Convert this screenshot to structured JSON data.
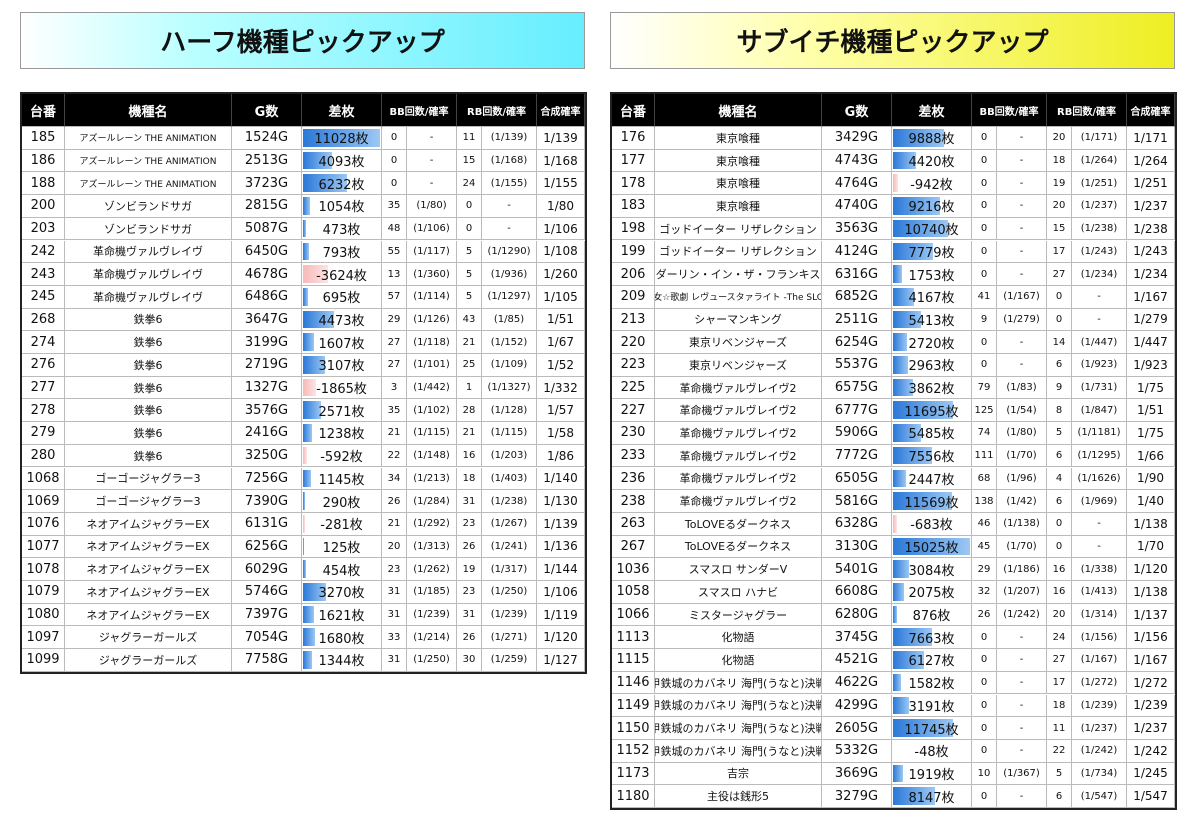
{
  "tables": [
    {
      "title": "ハーフ機種ピックアップ",
      "header": [
        "台番",
        "機種名",
        "G数",
        "差枚",
        "BB回数/確率",
        "RB回数/確率",
        "合成確率"
      ],
      "rows": [
        [
          "185",
          "アズールレーン THE ANIMATION",
          "1524G",
          "11028枚",
          "0",
          "-",
          "11",
          "(1/139)",
          "1/139"
        ],
        [
          "186",
          "アズールレーン THE ANIMATION",
          "2513G",
          "4093枚",
          "0",
          "-",
          "15",
          "(1/168)",
          "1/168"
        ],
        [
          "188",
          "アズールレーン THE ANIMATION",
          "3723G",
          "6232枚",
          "0",
          "-",
          "24",
          "(1/155)",
          "1/155"
        ],
        [
          "200",
          "ゾンビランドサガ",
          "2815G",
          "1054枚",
          "35",
          "(1/80)",
          "0",
          "-",
          "1/80"
        ],
        [
          "203",
          "ゾンビランドサガ",
          "5087G",
          "473枚",
          "48",
          "(1/106)",
          "0",
          "-",
          "1/106"
        ],
        [
          "242",
          "革命機ヴァルヴレイヴ",
          "6450G",
          "793枚",
          "55",
          "(1/117)",
          "5",
          "(1/1290)",
          "1/108"
        ],
        [
          "243",
          "革命機ヴァルヴレイヴ",
          "4678G",
          "-3624枚",
          "13",
          "(1/360)",
          "5",
          "(1/936)",
          "1/260"
        ],
        [
          "245",
          "革命機ヴァルヴレイヴ",
          "6486G",
          "695枚",
          "57",
          "(1/114)",
          "5",
          "(1/1297)",
          "1/105"
        ],
        [
          "268",
          "鉄拳6",
          "3647G",
          "4473枚",
          "29",
          "(1/126)",
          "43",
          "(1/85)",
          "1/51"
        ],
        [
          "274",
          "鉄拳6",
          "3199G",
          "1607枚",
          "27",
          "(1/118)",
          "21",
          "(1/152)",
          "1/67"
        ],
        [
          "276",
          "鉄拳6",
          "2719G",
          "3107枚",
          "27",
          "(1/101)",
          "25",
          "(1/109)",
          "1/52"
        ],
        [
          "277",
          "鉄拳6",
          "1327G",
          "-1865枚",
          "3",
          "(1/442)",
          "1",
          "(1/1327)",
          "1/332"
        ],
        [
          "278",
          "鉄拳6",
          "3576G",
          "2571枚",
          "35",
          "(1/102)",
          "28",
          "(1/128)",
          "1/57"
        ],
        [
          "279",
          "鉄拳6",
          "2416G",
          "1238枚",
          "21",
          "(1/115)",
          "21",
          "(1/115)",
          "1/58"
        ],
        [
          "280",
          "鉄拳6",
          "3250G",
          "-592枚",
          "22",
          "(1/148)",
          "16",
          "(1/203)",
          "1/86"
        ],
        [
          "1068",
          "ゴーゴージャグラー3",
          "7256G",
          "1145枚",
          "34",
          "(1/213)",
          "18",
          "(1/403)",
          "1/140"
        ],
        [
          "1069",
          "ゴーゴージャグラー3",
          "7390G",
          "290枚",
          "26",
          "(1/284)",
          "31",
          "(1/238)",
          "1/130"
        ],
        [
          "1076",
          "ネオアイムジャグラーEX",
          "6131G",
          "-281枚",
          "21",
          "(1/292)",
          "23",
          "(1/267)",
          "1/139"
        ],
        [
          "1077",
          "ネオアイムジャグラーEX",
          "6256G",
          "125枚",
          "20",
          "(1/313)",
          "26",
          "(1/241)",
          "1/136"
        ],
        [
          "1078",
          "ネオアイムジャグラーEX",
          "6029G",
          "454枚",
          "23",
          "(1/262)",
          "19",
          "(1/317)",
          "1/144"
        ],
        [
          "1079",
          "ネオアイムジャグラーEX",
          "5746G",
          "3270枚",
          "31",
          "(1/185)",
          "23",
          "(1/250)",
          "1/106"
        ],
        [
          "1080",
          "ネオアイムジャグラーEX",
          "7397G",
          "1621枚",
          "31",
          "(1/239)",
          "31",
          "(1/239)",
          "1/119"
        ],
        [
          "1097",
          "ジャグラーガールズ",
          "7054G",
          "1680枚",
          "33",
          "(1/214)",
          "26",
          "(1/271)",
          "1/120"
        ],
        [
          "1099",
          "ジャグラーガールズ",
          "7758G",
          "1344枚",
          "31",
          "(1/250)",
          "30",
          "(1/259)",
          "1/127"
        ]
      ]
    },
    {
      "title": "サブイチ機種ピックアップ",
      "header": [
        "台番",
        "機種名",
        "G数",
        "差枚",
        "BB回数/確率",
        "RB回数/確率",
        "合成確率"
      ],
      "rows": [
        [
          "176",
          "東京喰種",
          "3429G",
          "9888枚",
          "0",
          "-",
          "20",
          "(1/171)",
          "1/171"
        ],
        [
          "177",
          "東京喰種",
          "4743G",
          "4420枚",
          "0",
          "-",
          "18",
          "(1/264)",
          "1/264"
        ],
        [
          "178",
          "東京喰種",
          "4764G",
          "-942枚",
          "0",
          "-",
          "19",
          "(1/251)",
          "1/251"
        ],
        [
          "183",
          "東京喰種",
          "4740G",
          "9216枚",
          "0",
          "-",
          "20",
          "(1/237)",
          "1/237"
        ],
        [
          "198",
          "ゴッドイーター リザレクション",
          "3563G",
          "10740枚",
          "0",
          "-",
          "15",
          "(1/238)",
          "1/238"
        ],
        [
          "199",
          "ゴッドイーター リザレクション",
          "4124G",
          "7779枚",
          "0",
          "-",
          "17",
          "(1/243)",
          "1/243"
        ],
        [
          "206",
          "ダーリン・イン・ザ・フランキス",
          "6316G",
          "1753枚",
          "0",
          "-",
          "27",
          "(1/234)",
          "1/234"
        ],
        [
          "209",
          "少女☆歌劇 レヴュースタァライト -The SLOT-",
          "6852G",
          "4167枚",
          "41",
          "(1/167)",
          "0",
          "-",
          "1/167"
        ],
        [
          "213",
          "シャーマンキング",
          "2511G",
          "5413枚",
          "9",
          "(1/279)",
          "0",
          "-",
          "1/279"
        ],
        [
          "220",
          "東京リベンジャーズ",
          "6254G",
          "2720枚",
          "0",
          "-",
          "14",
          "(1/447)",
          "1/447"
        ],
        [
          "223",
          "東京リベンジャーズ",
          "5537G",
          "2963枚",
          "0",
          "-",
          "6",
          "(1/923)",
          "1/923"
        ],
        [
          "225",
          "革命機ヴァルヴレイヴ2",
          "6575G",
          "3862枚",
          "79",
          "(1/83)",
          "9",
          "(1/731)",
          "1/75"
        ],
        [
          "227",
          "革命機ヴァルヴレイヴ2",
          "6777G",
          "11695枚",
          "125",
          "(1/54)",
          "8",
          "(1/847)",
          "1/51"
        ],
        [
          "230",
          "革命機ヴァルヴレイヴ2",
          "5906G",
          "5485枚",
          "74",
          "(1/80)",
          "5",
          "(1/1181)",
          "1/75"
        ],
        [
          "233",
          "革命機ヴァルヴレイヴ2",
          "7772G",
          "7556枚",
          "111",
          "(1/70)",
          "6",
          "(1/1295)",
          "1/66"
        ],
        [
          "236",
          "革命機ヴァルヴレイヴ2",
          "6505G",
          "2447枚",
          "68",
          "(1/96)",
          "4",
          "(1/1626)",
          "1/90"
        ],
        [
          "238",
          "革命機ヴァルヴレイヴ2",
          "5816G",
          "11569枚",
          "138",
          "(1/42)",
          "6",
          "(1/969)",
          "1/40"
        ],
        [
          "263",
          "ToLOVEるダークネス",
          "6328G",
          "-683枚",
          "46",
          "(1/138)",
          "0",
          "-",
          "1/138"
        ],
        [
          "267",
          "ToLOVEるダークネス",
          "3130G",
          "15025枚",
          "45",
          "(1/70)",
          "0",
          "-",
          "1/70"
        ],
        [
          "1036",
          "スマスロ サンダーV",
          "5401G",
          "3084枚",
          "29",
          "(1/186)",
          "16",
          "(1/338)",
          "1/120"
        ],
        [
          "1058",
          "スマスロ ハナビ",
          "6608G",
          "2075枚",
          "32",
          "(1/207)",
          "16",
          "(1/413)",
          "1/138"
        ],
        [
          "1066",
          "ミスタージャグラー",
          "6280G",
          "876枚",
          "26",
          "(1/242)",
          "20",
          "(1/314)",
          "1/137"
        ],
        [
          "1113",
          "化物語",
          "3745G",
          "7663枚",
          "0",
          "-",
          "24",
          "(1/156)",
          "1/156"
        ],
        [
          "1115",
          "化物語",
          "4521G",
          "6127枚",
          "0",
          "-",
          "27",
          "(1/167)",
          "1/167"
        ],
        [
          "1146",
          "甲鉄城のカバネリ 海門(うなと)決戦",
          "4622G",
          "1582枚",
          "0",
          "-",
          "17",
          "(1/272)",
          "1/272"
        ],
        [
          "1149",
          "甲鉄城のカバネリ 海門(うなと)決戦",
          "4299G",
          "3191枚",
          "0",
          "-",
          "18",
          "(1/239)",
          "1/239"
        ],
        [
          "1150",
          "甲鉄城のカバネリ 海門(うなと)決戦",
          "2605G",
          "11745枚",
          "0",
          "-",
          "11",
          "(1/237)",
          "1/237"
        ],
        [
          "1152",
          "甲鉄城のカバネリ 海門(うなと)決戦",
          "5332G",
          "-48枚",
          "0",
          "-",
          "22",
          "(1/242)",
          "1/242"
        ],
        [
          "1173",
          "吉宗",
          "3669G",
          "1919枚",
          "10",
          "(1/367)",
          "5",
          "(1/734)",
          "1/245"
        ],
        [
          "1180",
          "主役は銭形5",
          "3279G",
          "8147枚",
          "0",
          "-",
          "6",
          "(1/547)",
          "1/547"
        ]
      ]
    }
  ]
}
